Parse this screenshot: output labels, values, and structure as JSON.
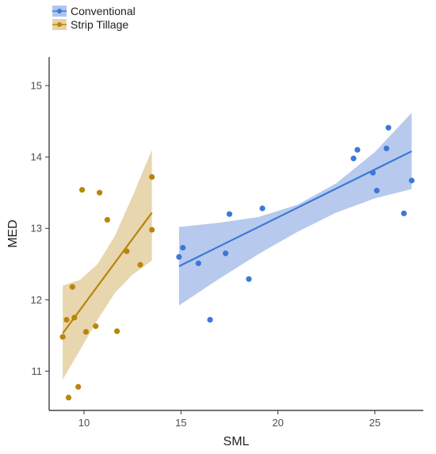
{
  "chart_data": {
    "type": "scatter",
    "xlabel": "SML",
    "ylabel": "MED",
    "xlim": [
      8.2,
      27.5
    ],
    "ylim": [
      10.45,
      15.4
    ],
    "xticks": [
      10,
      15,
      20,
      25
    ],
    "yticks": [
      11,
      12,
      13,
      14,
      15
    ],
    "grid": false,
    "legend_position": "top-left",
    "series": [
      {
        "name": "Conventional",
        "color": "#3d78d8",
        "band_color": "#7b9fde",
        "points": [
          {
            "x": 14.9,
            "y": 12.6
          },
          {
            "x": 15.1,
            "y": 12.73
          },
          {
            "x": 15.9,
            "y": 12.51
          },
          {
            "x": 16.5,
            "y": 11.72
          },
          {
            "x": 17.3,
            "y": 12.65
          },
          {
            "x": 17.5,
            "y": 13.2
          },
          {
            "x": 18.5,
            "y": 12.29
          },
          {
            "x": 19.2,
            "y": 13.28
          },
          {
            "x": 23.9,
            "y": 13.98
          },
          {
            "x": 24.1,
            "y": 14.1
          },
          {
            "x": 24.9,
            "y": 13.78
          },
          {
            "x": 25.1,
            "y": 13.53
          },
          {
            "x": 25.6,
            "y": 14.12
          },
          {
            "x": 25.7,
            "y": 14.41
          },
          {
            "x": 26.5,
            "y": 13.21
          },
          {
            "x": 26.9,
            "y": 13.67
          }
        ],
        "fit": {
          "x": [
            14.9,
            26.9
          ],
          "y": [
            12.47,
            14.08
          ]
        },
        "band": {
          "x": [
            14.9,
            17,
            19,
            21,
            23,
            25,
            26.9
          ],
          "lower": [
            11.92,
            12.3,
            12.64,
            12.95,
            13.22,
            13.42,
            13.55
          ],
          "upper": [
            13.02,
            13.08,
            13.16,
            13.33,
            13.63,
            14.07,
            14.62
          ]
        }
      },
      {
        "name": "Strip Tillage",
        "color": "#b8860b",
        "band_color": "#d6b46e",
        "points": [
          {
            "x": 8.9,
            "y": 11.48
          },
          {
            "x": 9.1,
            "y": 11.72
          },
          {
            "x": 9.2,
            "y": 10.63
          },
          {
            "x": 9.4,
            "y": 12.18
          },
          {
            "x": 9.5,
            "y": 11.75
          },
          {
            "x": 9.7,
            "y": 10.78
          },
          {
            "x": 9.9,
            "y": 13.54
          },
          {
            "x": 10.1,
            "y": 11.55
          },
          {
            "x": 10.6,
            "y": 11.63
          },
          {
            "x": 10.8,
            "y": 13.5
          },
          {
            "x": 11.2,
            "y": 13.12
          },
          {
            "x": 11.7,
            "y": 11.56
          },
          {
            "x": 12.2,
            "y": 12.68
          },
          {
            "x": 12.9,
            "y": 12.49
          },
          {
            "x": 13.5,
            "y": 12.98
          },
          {
            "x": 13.5,
            "y": 13.72
          }
        ],
        "fit": {
          "x": [
            8.9,
            13.5
          ],
          "y": [
            11.53,
            13.22
          ]
        },
        "band": {
          "x": [
            8.9,
            9.8,
            10.7,
            11.6,
            12.5,
            13.5
          ],
          "lower": [
            10.88,
            11.3,
            11.72,
            12.1,
            12.35,
            12.55
          ],
          "upper": [
            12.2,
            12.28,
            12.5,
            12.9,
            13.45,
            14.1
          ]
        }
      }
    ]
  }
}
